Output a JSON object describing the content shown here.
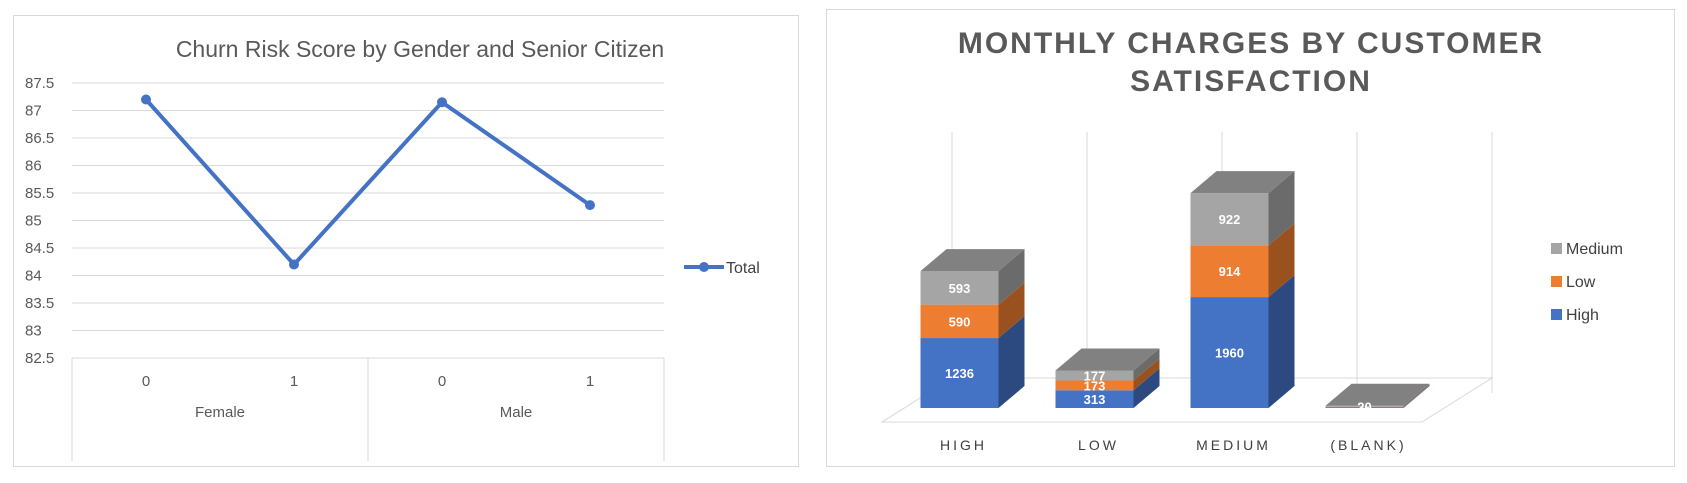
{
  "line_chart_title": "Churn Risk Score by Gender and Senior Citizen",
  "bar_chart_title_line1": "MONTHLY CHARGES BY CUSTOMER",
  "bar_chart_title_line2": "SATISFACTION",
  "colors": {
    "line": "#4472c4",
    "high": "#4472c4",
    "low": "#ed7d31",
    "medium": "#a5a5a5",
    "grid": "#d9d9d9"
  },
  "chart_data": [
    {
      "type": "line",
      "title": "Churn Risk Score by Gender and Senior Citizen",
      "categories": [
        {
          "group": "Female",
          "label": "0"
        },
        {
          "group": "Female",
          "label": "1"
        },
        {
          "group": "Male",
          "label": "0"
        },
        {
          "group": "Male",
          "label": "1"
        }
      ],
      "groups": [
        "Female",
        "Male"
      ],
      "series": [
        {
          "name": "Total",
          "values": [
            87.2,
            84.2,
            87.15,
            85.28
          ]
        }
      ],
      "ylim": [
        82.5,
        87.5
      ],
      "yticks": [
        "87.5",
        "87",
        "86.5",
        "86",
        "85.5",
        "85",
        "84.5",
        "84",
        "83.5",
        "83",
        "82.5"
      ],
      "grid": true,
      "legend": "right"
    },
    {
      "type": "bar",
      "stacked": true,
      "three_d": true,
      "title": "MONTHLY CHARGES BY CUSTOMER SATISFACTION",
      "categories": [
        "HIGH",
        "LOW",
        "MEDIUM",
        "(BLANK)"
      ],
      "series": [
        {
          "name": "High",
          "values": [
            1236,
            313,
            1960,
            9
          ]
        },
        {
          "name": "Low",
          "values": [
            590,
            173,
            914,
            11
          ]
        },
        {
          "name": "Medium",
          "values": [
            593,
            177,
            922,
            20
          ]
        }
      ],
      "legend": "right"
    }
  ]
}
